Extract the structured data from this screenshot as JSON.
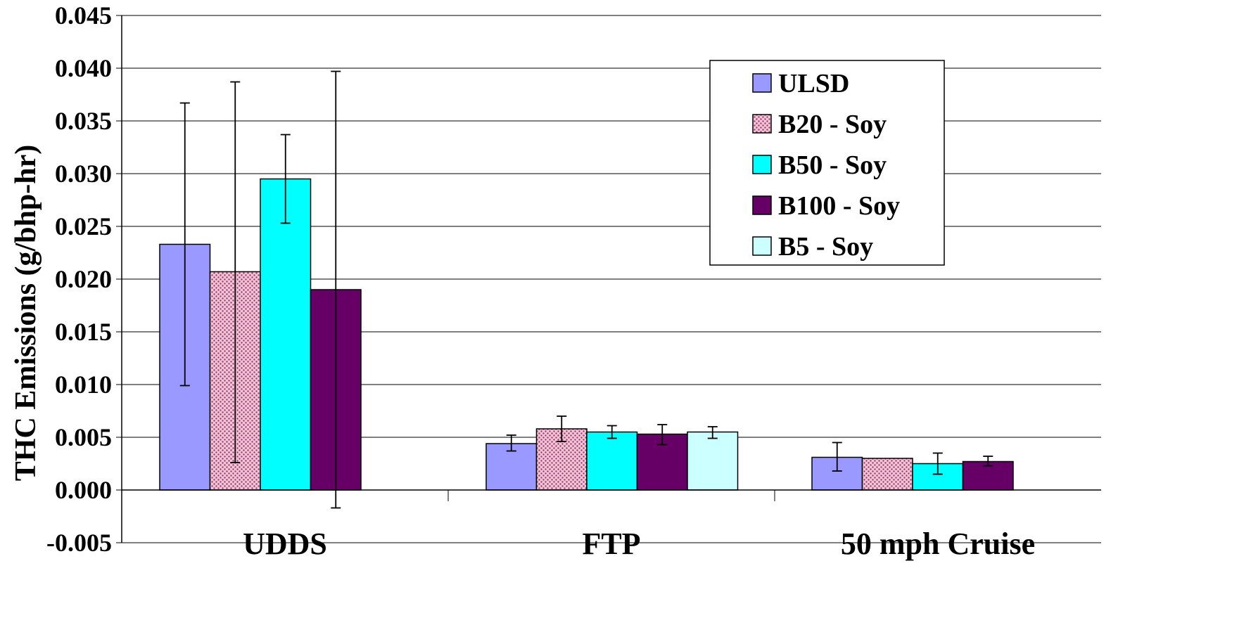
{
  "chart_data": {
    "type": "bar",
    "title": "",
    "xlabel": "",
    "ylabel": "THC Emissions (g/bhp-hr)",
    "ylim": [
      -0.005,
      0.045
    ],
    "y_ticks": [
      "0.045",
      "0.040",
      "0.035",
      "0.030",
      "0.025",
      "0.020",
      "0.015",
      "0.010",
      "0.005",
      "0.000",
      "-0.005"
    ],
    "categories": [
      "UDDS",
      "FTP",
      "50 mph Cruise"
    ],
    "grid": true,
    "legend_position": "top-right",
    "series": [
      {
        "name": "ULSD",
        "color": "#9999ff",
        "pattern": "solid",
        "values": [
          0.0233,
          0.0044,
          0.0031
        ],
        "error_low": [
          0.0099,
          0.0037,
          0.0018
        ],
        "error_high": [
          0.0367,
          0.0052,
          0.0045
        ]
      },
      {
        "name": "B20 - Soy",
        "color": "#d48fb0",
        "pattern": "dotted",
        "values": [
          0.0207,
          0.0058,
          0.003
        ],
        "error_low": [
          0.0026,
          0.0046,
          null
        ],
        "error_high": [
          0.0387,
          0.007,
          null
        ]
      },
      {
        "name": "B50 - Soy",
        "color": "#00ffff",
        "pattern": "solid",
        "values": [
          0.0295,
          0.0055,
          0.0025
        ],
        "error_low": [
          0.0253,
          0.0049,
          0.0015
        ],
        "error_high": [
          0.0337,
          0.0061,
          0.0035
        ]
      },
      {
        "name": "B100 - Soy",
        "color": "#660066",
        "pattern": "solid",
        "values": [
          0.019,
          0.0053,
          0.0027
        ],
        "error_low": [
          -0.0017,
          0.0043,
          0.0023
        ],
        "error_high": [
          0.0397,
          0.0062,
          0.0032
        ]
      },
      {
        "name": "B5 - Soy",
        "color": "#ccffff",
        "pattern": "solid",
        "values": [
          null,
          0.0055,
          null
        ],
        "error_low": [
          null,
          0.0049,
          null
        ],
        "error_high": [
          null,
          0.006,
          null
        ]
      }
    ]
  }
}
